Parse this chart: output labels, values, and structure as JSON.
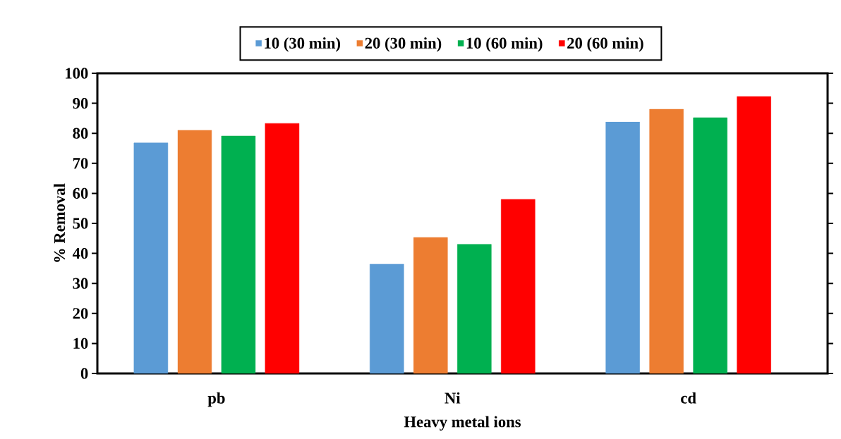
{
  "chart_data": {
    "type": "bar",
    "xlabel": "Heavy metal ions",
    "ylabel": "% Removal",
    "categories": [
      "pb",
      "Ni",
      "cd"
    ],
    "series": [
      {
        "name": "10 (30 min)",
        "color": "#5b9bd5",
        "values": [
          76.8,
          36.4,
          83.8
        ]
      },
      {
        "name": "20 (30 min)",
        "color": "#ed7d31",
        "values": [
          81.0,
          45.3,
          88.0
        ]
      },
      {
        "name": "10 (60 min)",
        "color": "#00b050",
        "values": [
          79.1,
          43.0,
          85.2
        ]
      },
      {
        "name": "20 (60 min)",
        "color": "#ff0000",
        "values": [
          83.3,
          58.0,
          92.3
        ]
      }
    ],
    "ylim": [
      0,
      100
    ],
    "yticks": [
      0,
      10,
      20,
      30,
      40,
      50,
      60,
      70,
      80,
      90,
      100
    ],
    "grid": false,
    "legend": "top"
  }
}
